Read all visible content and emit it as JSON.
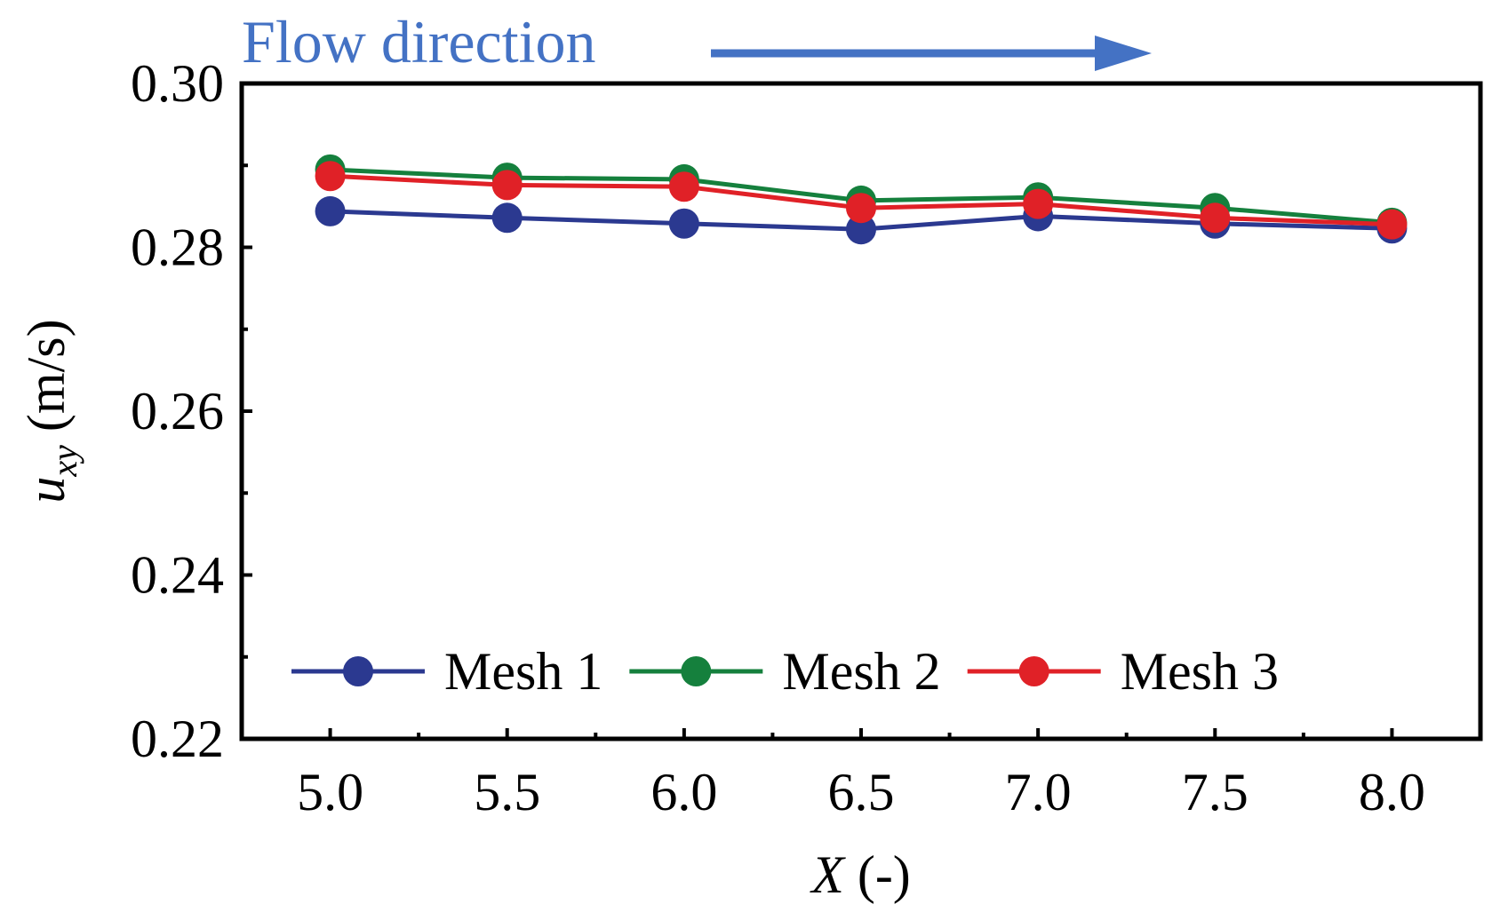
{
  "chart_data": {
    "type": "line",
    "annotation": {
      "text": "Flow direction",
      "color": "#4472C4",
      "arrow": "right"
    },
    "xlabel": {
      "var": "X",
      "unit": " (-)"
    },
    "ylabel": {
      "var": "u",
      "sub": "xy",
      "unit": " (m/s)"
    },
    "xlim": [
      4.75,
      8.25
    ],
    "ylim": [
      0.22,
      0.3
    ],
    "x_ticks": [
      5.0,
      5.5,
      6.0,
      6.5,
      7.0,
      7.5,
      8.0
    ],
    "x_tick_labels": [
      "5.0",
      "5.5",
      "6.0",
      "6.5",
      "7.0",
      "7.5",
      "8.0"
    ],
    "x_minor_ticks": [
      5.25,
      5.75,
      6.25,
      6.75,
      7.25,
      7.75
    ],
    "y_ticks": [
      0.22,
      0.24,
      0.26,
      0.28,
      0.3
    ],
    "y_tick_labels": [
      "0.22",
      "0.24",
      "0.26",
      "0.28",
      "0.30"
    ],
    "y_minor_ticks": [
      0.23,
      0.25,
      0.27,
      0.29
    ],
    "grid": false,
    "legend": {
      "placement": "bottom-left",
      "orientation": "horizontal"
    },
    "x": [
      5.0,
      5.5,
      6.0,
      6.5,
      7.0,
      7.5,
      8.0
    ],
    "series": [
      {
        "name": "Mesh 1",
        "color": "#2B3990",
        "values": [
          0.2844,
          0.2836,
          0.2829,
          0.2822,
          0.2838,
          0.2829,
          0.2823
        ]
      },
      {
        "name": "Mesh 2",
        "color": "#15803D",
        "values": [
          0.2895,
          0.2885,
          0.2883,
          0.2857,
          0.2861,
          0.2848,
          0.283
        ]
      },
      {
        "name": "Mesh 3",
        "color": "#E02127",
        "values": [
          0.2887,
          0.2876,
          0.2874,
          0.2848,
          0.2853,
          0.2836,
          0.2828
        ]
      }
    ]
  }
}
